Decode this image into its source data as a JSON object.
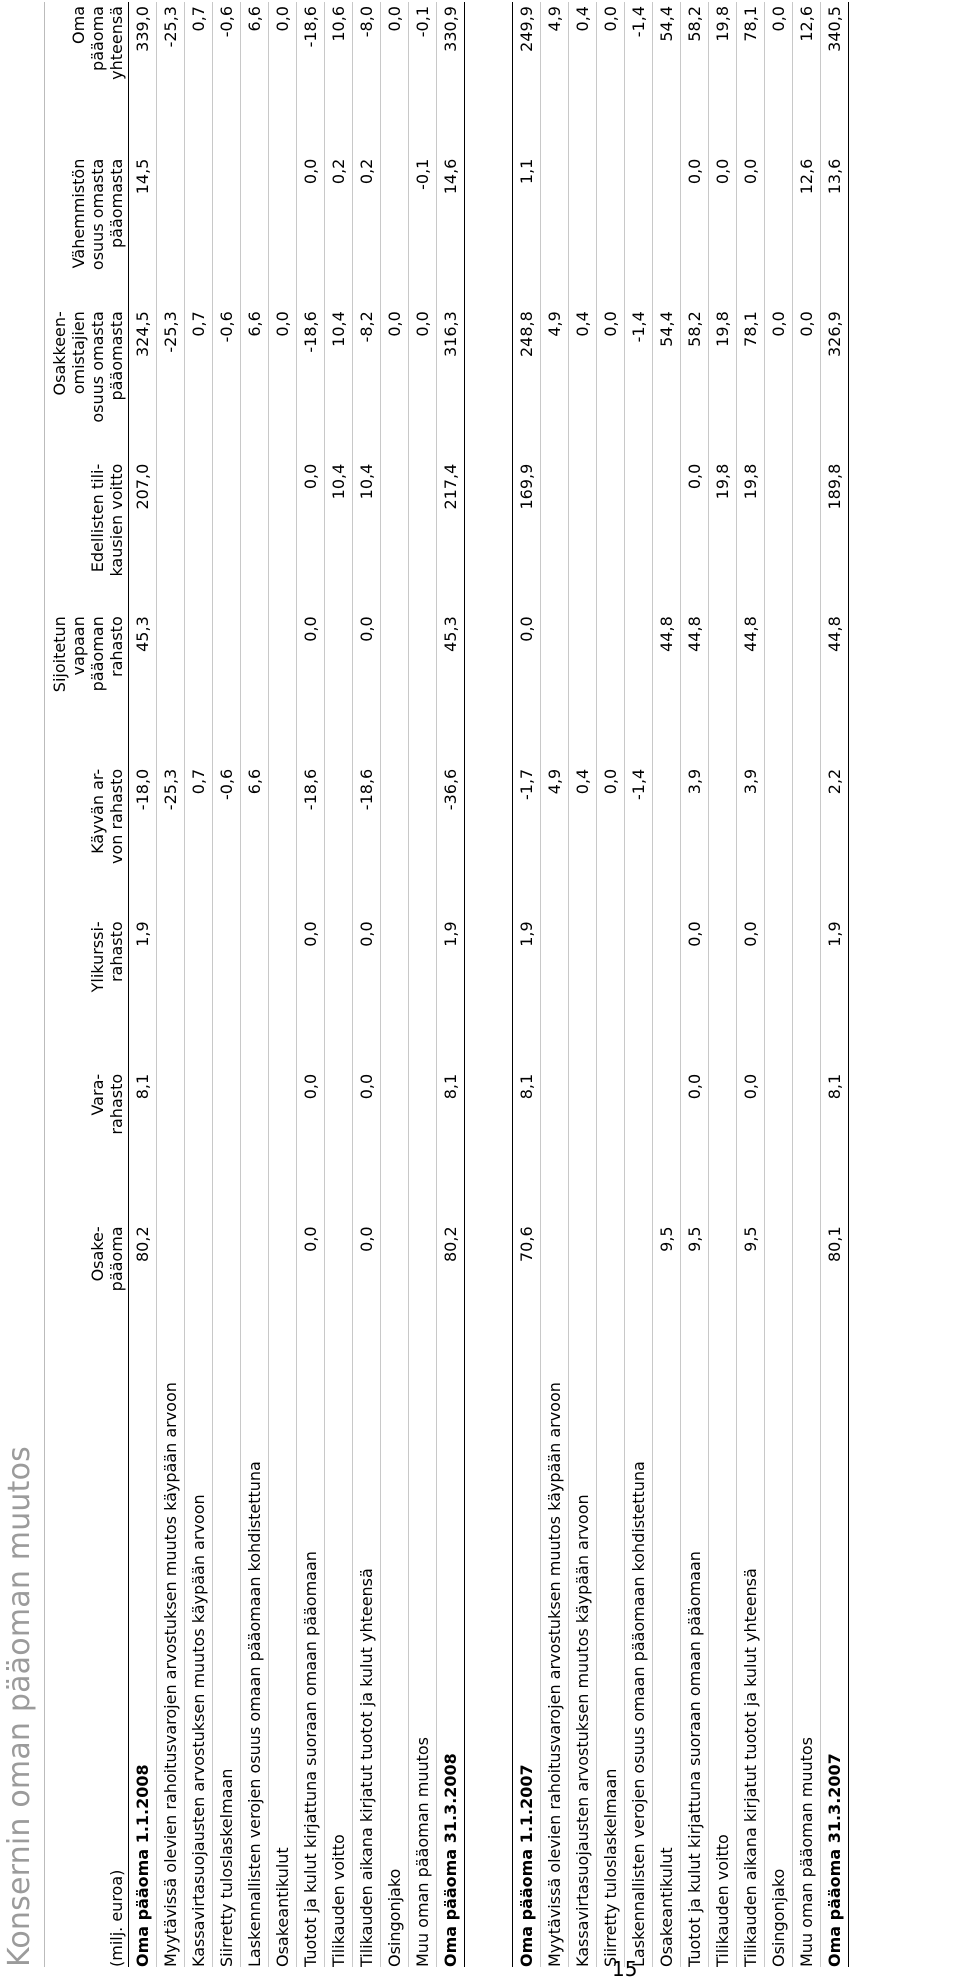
{
  "page_number": "15",
  "title": "Konsernin oman pääoman muutos",
  "unit_label": "(milj. euroa)",
  "columns": [
    "Osake-\npääoma",
    "Vara-\nrahasto",
    "Ylikurssi-\nrahasto",
    "Käyvän ar-\nvon rahasto",
    "Sijoitetun\nvapaan\npääoman\nrahasto",
    "Edellisten tili-\nkausien voitto",
    "Osakkeen-\nomistajien\nosuus omasta\npääomasta",
    "Vähemmistön\nosuus omasta\npääomasta",
    "Oma\npääoma\nyhteensä"
  ],
  "rows": [
    {
      "label": "Oma pääoma 1.1.2008",
      "values": [
        "80,2",
        "8,1",
        "1,9",
        "-18,0",
        "45,3",
        "207,0",
        "324,5",
        "14,5",
        "339,0"
      ]
    },
    {
      "label": "Myytävissä olevien rahoitusvarojen arvostuksen muutos käypään arvoon",
      "values": [
        "",
        "",
        "",
        "-25,3",
        "",
        "",
        "-25,3",
        "",
        "-25,3"
      ]
    },
    {
      "label": "Kassavirtasuojausten arvostuksen muutos käypään arvoon",
      "values": [
        "",
        "",
        "",
        "0,7",
        "",
        "",
        "0,7",
        "",
        "0,7"
      ]
    },
    {
      "label": "Siirretty tuloslaskelmaan",
      "values": [
        "",
        "",
        "",
        "-0,6",
        "",
        "",
        "-0,6",
        "",
        "-0,6"
      ]
    },
    {
      "label": "Laskennallisten verojen osuus omaan pääomaan kohdistettuna",
      "values": [
        "",
        "",
        "",
        "6,6",
        "",
        "",
        "6,6",
        "",
        "6,6"
      ]
    },
    {
      "label": "Osakeantikulut",
      "values": [
        "",
        "",
        "",
        "",
        "",
        "",
        "0,0",
        "",
        "0,0"
      ]
    },
    {
      "label": "Tuotot ja kulut kirjattuna suoraan omaan pääomaan",
      "values": [
        "0,0",
        "0,0",
        "0,0",
        "-18,6",
        "0,0",
        "0,0",
        "-18,6",
        "0,0",
        "-18,6"
      ]
    },
    {
      "label": "Tilikauden voitto",
      "values": [
        "",
        "",
        "",
        "",
        "",
        "10,4",
        "10,4",
        "0,2",
        "10,6"
      ]
    },
    {
      "label": "Tilikauden aikana kirjatut tuotot ja kulut yhteensä",
      "values": [
        "0,0",
        "0,0",
        "0,0",
        "-18,6",
        "0,0",
        "10,4",
        "-8,2",
        "0,2",
        "-8,0"
      ]
    },
    {
      "label": "Osingonjako",
      "values": [
        "",
        "",
        "",
        "",
        "",
        "",
        "0,0",
        "",
        "0,0"
      ]
    },
    {
      "label": "Muu oman pääoman muutos",
      "values": [
        "",
        "",
        "",
        "",
        "",
        "",
        "0,0",
        "-0,1",
        "-0,1"
      ]
    },
    {
      "label": "Oma pääoma 31.3.2008",
      "values": [
        "80,2",
        "8,1",
        "1,9",
        "-36,6",
        "45,3",
        "217,4",
        "316,3",
        "14,6",
        "330,9"
      ]
    },
    {
      "label": "Oma pääoma 1.1.2007",
      "values": [
        "70,6",
        "8,1",
        "1,9",
        "-1,7",
        "0,0",
        "169,9",
        "248,8",
        "1,1",
        "249,9"
      ]
    },
    {
      "label": "Myytävissä olevien rahoitusvarojen arvostuksen muutos käypään arvoon",
      "values": [
        "",
        "",
        "",
        "4,9",
        "",
        "",
        "4,9",
        "",
        "4,9"
      ]
    },
    {
      "label": "Kassavirtasuojausten arvostuksen muutos käypään arvoon",
      "values": [
        "",
        "",
        "",
        "0,4",
        "",
        "",
        "0,4",
        "",
        "0,4"
      ]
    },
    {
      "label": "Siirretty tuloslaskelmaan",
      "values": [
        "",
        "",
        "",
        "0,0",
        "",
        "",
        "0,0",
        "",
        "0,0"
      ]
    },
    {
      "label": "Laskennallisten verojen osuus omaan pääomaan kohdistettuna",
      "values": [
        "",
        "",
        "",
        "-1,4",
        "",
        "",
        "-1,4",
        "",
        "-1,4"
      ]
    },
    {
      "label": "Osakeantikulut",
      "values": [
        "9,5",
        "",
        "",
        "",
        "44,8",
        "",
        "54,4",
        "",
        "54,4"
      ]
    },
    {
      "label": "Tuotot ja kulut kirjattuna suoraan omaan pääomaan",
      "values": [
        "9,5",
        "0,0",
        "0,0",
        "3,9",
        "44,8",
        "0,0",
        "58,2",
        "0,0",
        "58,2"
      ]
    },
    {
      "label": "Tilikauden voitto",
      "values": [
        "",
        "",
        "",
        "",
        "",
        "19,8",
        "19,8",
        "0,0",
        "19,8"
      ]
    },
    {
      "label": "Tilikauden aikana kirjatut tuotot ja kulut yhteensä",
      "values": [
        "9,5",
        "0,0",
        "0,0",
        "3,9",
        "44,8",
        "19,8",
        "78,1",
        "0,0",
        "78,1"
      ]
    },
    {
      "label": "Osingonjako",
      "values": [
        "",
        "",
        "",
        "",
        "",
        "",
        "0,0",
        "",
        "0,0"
      ]
    },
    {
      "label": "Muu oman pääoman muutos",
      "values": [
        "",
        "",
        "",
        "",
        "",
        "",
        "0,0",
        "12,6",
        "12,6"
      ]
    },
    {
      "label": "Oma pääoma 31.3.2007",
      "values": [
        "80,1",
        "8,1",
        "1,9",
        "2,2",
        "44,8",
        "189,8",
        "326,9",
        "13,6",
        "340,5"
      ]
    }
  ]
}
